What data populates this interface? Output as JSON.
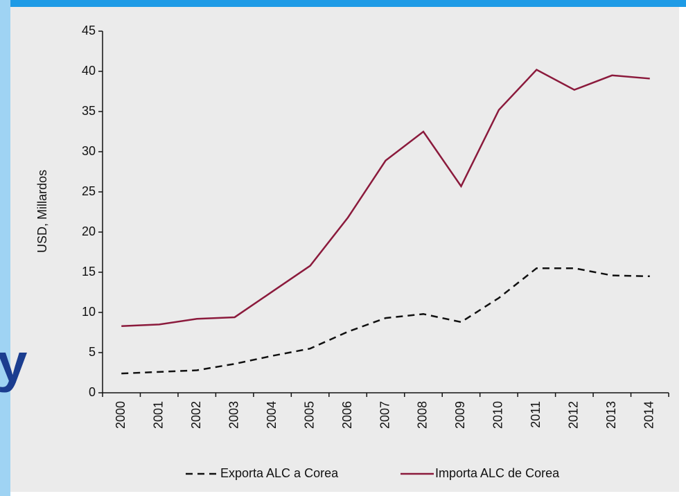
{
  "slide_text": "y",
  "chart_data": {
    "type": "line",
    "y_label": "USD, Millardos",
    "categories": [
      "2000",
      "2001",
      "2002",
      "2003",
      "2004",
      "2005",
      "2006",
      "2007",
      "2008",
      "2009",
      "2010",
      "2011",
      "2012",
      "2013",
      "2014"
    ],
    "series": [
      {
        "name": "Exporta ALC a Corea",
        "color": "#111111",
        "line_style": "dashed",
        "values": [
          2.4,
          2.6,
          2.8,
          3.6,
          4.6,
          5.5,
          7.6,
          9.3,
          9.8,
          8.8,
          11.8,
          15.5,
          15.5,
          14.6,
          14.5
        ]
      },
      {
        "name": "Importa ALC de Corea",
        "color": "#8b1a3c",
        "line_style": "solid",
        "values": [
          8.3,
          8.5,
          9.2,
          9.4,
          12.6,
          15.8,
          21.8,
          28.9,
          32.5,
          25.7,
          35.2,
          40.2,
          37.7,
          39.5,
          39.1
        ]
      }
    ],
    "ylim": [
      0,
      45
    ],
    "yticks": [
      0,
      5,
      10,
      15,
      20,
      25,
      30,
      35,
      40,
      45
    ],
    "grid": false,
    "legend": "bottom"
  }
}
